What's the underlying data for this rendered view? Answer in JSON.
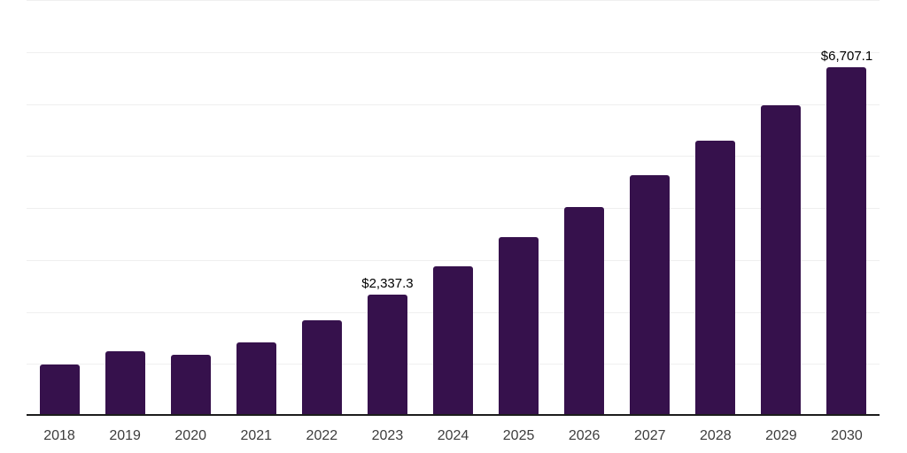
{
  "chart_data": {
    "type": "bar",
    "title": "",
    "xlabel": "",
    "ylabel": "",
    "categories": [
      "2018",
      "2019",
      "2020",
      "2021",
      "2022",
      "2023",
      "2024",
      "2025",
      "2026",
      "2027",
      "2028",
      "2029",
      "2030"
    ],
    "values": [
      995,
      1250,
      1180,
      1405,
      1840,
      2337.3,
      2870,
      3440,
      4025,
      4630,
      5290,
      5970,
      6707.1
    ],
    "data_labels": [
      null,
      null,
      null,
      null,
      null,
      "$2,337.3",
      null,
      null,
      null,
      null,
      null,
      null,
      "$6,707.1"
    ],
    "ylim": [
      0,
      8000
    ],
    "gridline_interval": 1000,
    "grid": "horizontal-only",
    "legend": "none",
    "y_axis_labels_visible": false,
    "colors": {
      "bar": "#36114C",
      "axis_line": "#1c1c1c",
      "gridline": "#efefef",
      "tick_label": "#3d3d3d",
      "data_label": "#000000",
      "background": "#ffffff"
    }
  }
}
